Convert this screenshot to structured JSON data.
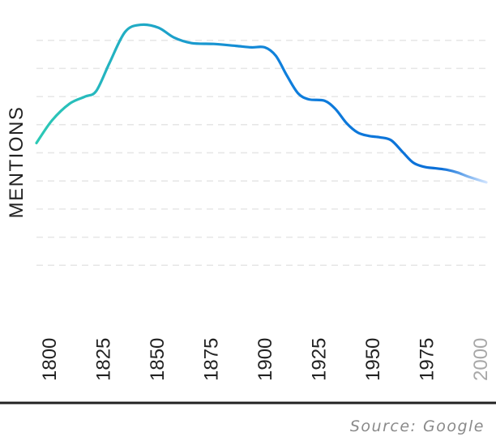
{
  "chart_data": {
    "type": "line",
    "title": "",
    "ylabel": "MENTIONS",
    "xlabel": "",
    "x_ticks": [
      "1800",
      "1825",
      "1850",
      "1875",
      "1900",
      "1925",
      "1950",
      "1975",
      "2000"
    ],
    "future_tick": "2000",
    "xlim": [
      1800,
      2003
    ],
    "ylim": [
      0,
      10
    ],
    "grid": true,
    "y_tick_labels_shown": false,
    "colors": {
      "line_start": "#2cc9b5",
      "line_mid": "#0f7fdc",
      "line_end": "#0b6fd8",
      "line_fade": "#cfe3ff",
      "grid": "#e6e6e6",
      "baseline": "#222222",
      "future_tick": "#a8a8a8",
      "source_text": "#8a8a8a"
    },
    "series": [
      {
        "x": [
          1800,
          1807,
          1815,
          1822,
          1827,
          1833,
          1840,
          1847,
          1855,
          1862,
          1870,
          1880,
          1890,
          1897,
          1903,
          1908,
          1913,
          1918,
          1923,
          1930,
          1935,
          1940,
          1945,
          1950,
          1955,
          1960,
          1965,
          1970,
          1975,
          1980,
          1985,
          1990,
          1995,
          2003
        ],
        "y": [
          5.35,
          6.15,
          6.75,
          7.0,
          7.2,
          8.2,
          9.3,
          9.55,
          9.45,
          9.1,
          8.9,
          8.87,
          8.8,
          8.75,
          8.75,
          8.45,
          7.75,
          7.12,
          6.9,
          6.85,
          6.55,
          6.05,
          5.72,
          5.6,
          5.55,
          5.45,
          5.05,
          4.65,
          4.5,
          4.45,
          4.4,
          4.3,
          4.15,
          3.95
        ]
      }
    ]
  },
  "source": "Source: Google"
}
